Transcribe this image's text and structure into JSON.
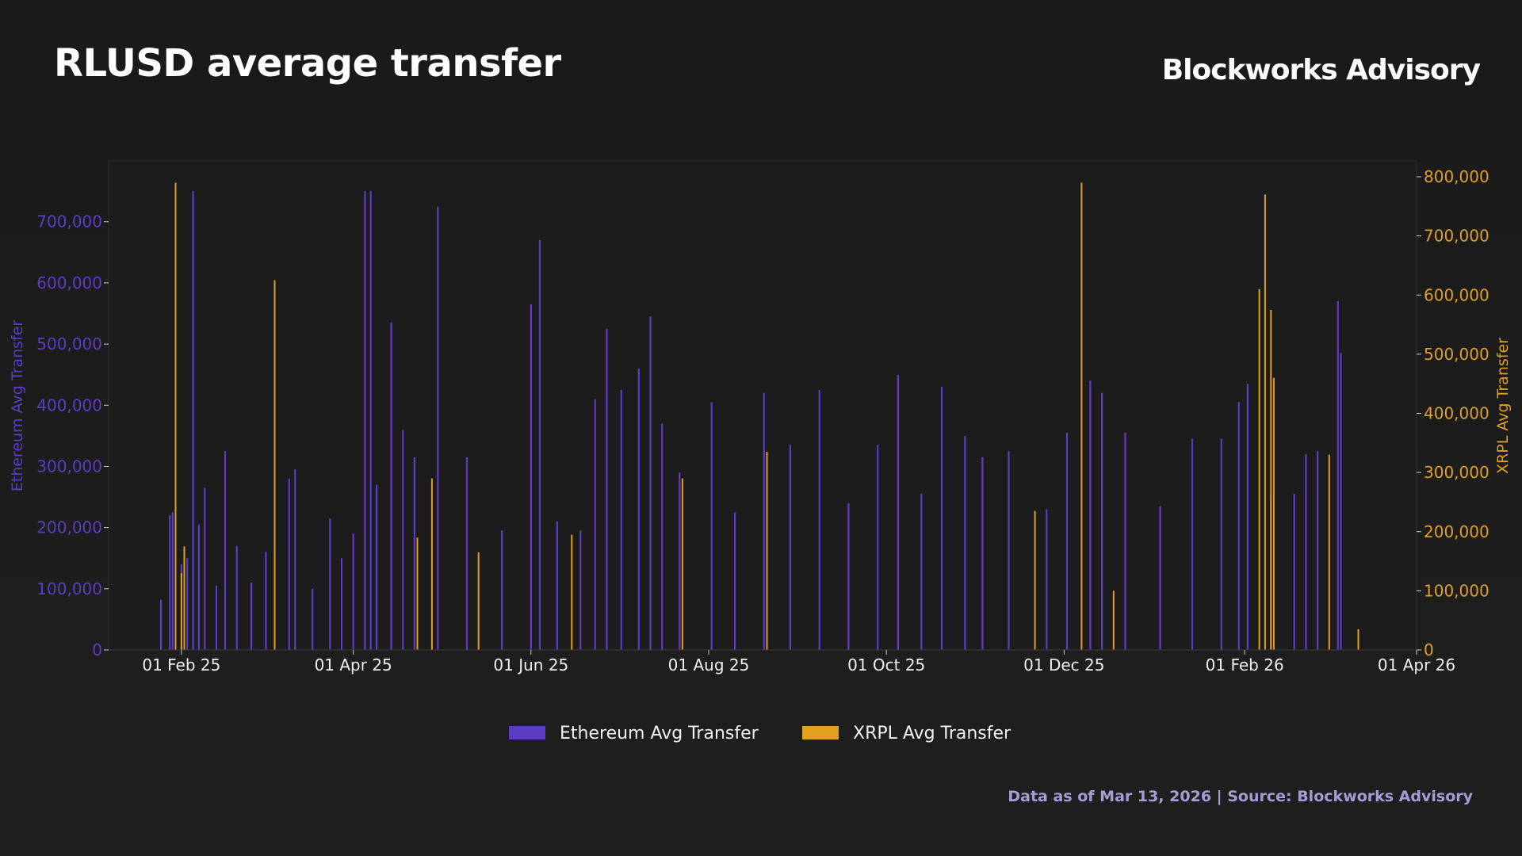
{
  "header": {
    "title": "RLUSD average transfer",
    "brand": "Blockworks Advisory"
  },
  "footer": {
    "note": "Data as of Mar 13, 2026 | Source: Blockworks Advisory"
  },
  "colors": {
    "ethereum": "#5b3cc4",
    "xrpl": "#e0a020",
    "footer_text": "#a89cd6",
    "plot_bg": "#1c1c1c",
    "axis_line": "#3a3a3a"
  },
  "chart_data": {
    "type": "bar",
    "title": "RLUSD average transfer",
    "x_axis": {
      "type": "date",
      "range": [
        "2025-01-07",
        "2026-04-01"
      ],
      "ticks": [
        {
          "date": "2025-02-01",
          "label": "01 Feb 25"
        },
        {
          "date": "2025-04-01",
          "label": "01 Apr 25"
        },
        {
          "date": "2025-06-01",
          "label": "01 Jun 25"
        },
        {
          "date": "2025-08-01",
          "label": "01 Aug 25"
        },
        {
          "date": "2025-10-01",
          "label": "01 Oct 25"
        },
        {
          "date": "2025-12-01",
          "label": "01 Dec 25"
        },
        {
          "date": "2026-02-01",
          "label": "01 Feb 26"
        },
        {
          "date": "2026-04-01",
          "label": "01 Apr 26"
        }
      ]
    },
    "y_axis_left": {
      "label": "Ethereum Avg Transfer",
      "range": [
        0,
        780000
      ],
      "ticks": [
        {
          "value": 0,
          "label": "0"
        },
        {
          "value": 100000,
          "label": "100,000"
        },
        {
          "value": 200000,
          "label": "200,000"
        },
        {
          "value": 300000,
          "label": "300,000"
        },
        {
          "value": 400000,
          "label": "400,000"
        },
        {
          "value": 500000,
          "label": "500,000"
        },
        {
          "value": 600000,
          "label": "600,000"
        },
        {
          "value": 700000,
          "label": "700,000"
        }
      ]
    },
    "y_axis_right": {
      "label": "XRPL Avg Transfer",
      "range": [
        0,
        800000
      ],
      "ticks": [
        {
          "value": 0,
          "label": "0"
        },
        {
          "value": 100000,
          "label": "100,000"
        },
        {
          "value": 200000,
          "label": "200,000"
        },
        {
          "value": 300000,
          "label": "300,000"
        },
        {
          "value": 400000,
          "label": "400,000"
        },
        {
          "value": 500000,
          "label": "500,000"
        },
        {
          "value": 600000,
          "label": "600,000"
        },
        {
          "value": 700000,
          "label": "700,000"
        },
        {
          "value": 800000,
          "label": "800,000"
        }
      ]
    },
    "legend": {
      "position": "bottom-center"
    },
    "grid": false,
    "series": [
      {
        "name": "Ethereum Avg Transfer",
        "axis": "left",
        "color": "#5b3cc4",
        "points": [
          [
            "2025-01-25",
            82000
          ],
          [
            "2025-01-28",
            220000
          ],
          [
            "2025-01-29",
            225000
          ],
          [
            "2025-02-01",
            140000
          ],
          [
            "2025-02{SEP}03",
            150000
          ],
          [
            "2025-02-05",
            750000
          ],
          [
            "2025-02-07",
            205000
          ],
          [
            "2025-02-09",
            265000
          ],
          [
            "2025-02-13",
            105000
          ],
          [
            "2025-02-16",
            325000
          ],
          [
            "2025-02-20",
            170000
          ],
          [
            "2025-02-25",
            110000
          ],
          [
            "2025-03-02",
            160000
          ],
          [
            "2025-03-10",
            280000
          ],
          [
            "2025-03-12",
            295000
          ],
          [
            "2025-03-18",
            100000
          ],
          [
            "2025-03-24",
            215000
          ],
          [
            "2025-03-28",
            150000
          ],
          [
            "2025-04-01",
            190000
          ],
          [
            "2025-04-05",
            750000
          ],
          [
            "2025-04-07",
            750000
          ],
          [
            "2025-04-09",
            270000
          ],
          [
            "2025-04-14",
            535000
          ],
          [
            "2025-04-18",
            360000
          ],
          [
            "2025-04-22",
            315000
          ],
          [
            "2025-04-30",
            725000
          ],
          [
            "2025-05-10",
            315000
          ],
          [
            "2025-05-22",
            195000
          ],
          [
            "2025-06-01",
            565000
          ],
          [
            "2025-06-04",
            670000
          ],
          [
            "2025-06-10",
            210000
          ],
          [
            "2025-06-18",
            195000
          ],
          [
            "2025-06-23",
            410000
          ],
          [
            "2025-06-27",
            525000
          ],
          [
            "2025-07-02",
            425000
          ],
          [
            "2025-07-08",
            460000
          ],
          [
            "2025-07-12",
            545000
          ],
          [
            "2025-07-16",
            370000
          ],
          [
            "2025-07-22",
            290000
          ],
          [
            "2025-08-02",
            405000
          ],
          [
            "2025-08-10",
            225000
          ],
          [
            "2025-08-20",
            420000
          ],
          [
            "2025-08-29",
            335000
          ],
          [
            "2025-09-08",
            425000
          ],
          [
            "2025-09-18",
            240000
          ],
          [
            "2025-09-28",
            335000
          ],
          [
            "2025-10-05",
            450000
          ],
          [
            "2025-10-13",
            255000
          ],
          [
            "2025-10-20",
            430000
          ],
          [
            "2025-10-28",
            350000
          ],
          [
            "2025-11-03",
            315000
          ],
          [
            "2025-11-12",
            325000
          ],
          [
            "2025-11-25",
            230000
          ],
          [
            "2025-12-02",
            355000
          ],
          [
            "2025-12-10",
            440000
          ],
          [
            "2025-12-14",
            420000
          ],
          [
            "2025-12-22",
            355000
          ],
          [
            "2026-01-03",
            235000
          ],
          [
            "2026-01-14",
            345000
          ],
          [
            "2026-01-24",
            345000
          ],
          [
            "2026-01-30",
            405000
          ],
          [
            "2026-02-02",
            435000
          ],
          [
            "2026-02-10",
            250000
          ],
          [
            "2026-02-18",
            255000
          ],
          [
            "2026-02-22",
            320000
          ],
          [
            "2026-02-26",
            325000
          ],
          [
            "2026-03-05",
            570000
          ],
          [
            "2026-03-06",
            485000
          ]
        ]
      },
      {
        "name": "XRPL Avg Transfer",
        "axis": "right",
        "color": "#e0a020",
        "points": [
          [
            "2025-01-30",
            790000
          ],
          [
            "2025-02-01",
            130000
          ],
          [
            "2025-02-02",
            175000
          ],
          [
            "2025-03-05",
            625000
          ],
          [
            "2025-04-23",
            190000
          ],
          [
            "2025-04-28",
            290000
          ],
          [
            "2025-05-14",
            165000
          ],
          [
            "2025-06-15",
            195000
          ],
          [
            "2025-07-23",
            290000
          ],
          [
            "2025-08-21",
            335000
          ],
          [
            "2025-11-21",
            235000
          ],
          [
            "2025-12-07",
            790000
          ],
          [
            "2025-12-18",
            100000
          ],
          [
            "2026-02-06",
            610000
          ],
          [
            "2026-02-08",
            770000
          ],
          [
            "2026-02-10",
            575000
          ],
          [
            "2026-02-11",
            460000
          ],
          [
            "2026-03-02",
            330000
          ],
          [
            "2026-03-12",
            35000
          ]
        ]
      }
    ]
  }
}
